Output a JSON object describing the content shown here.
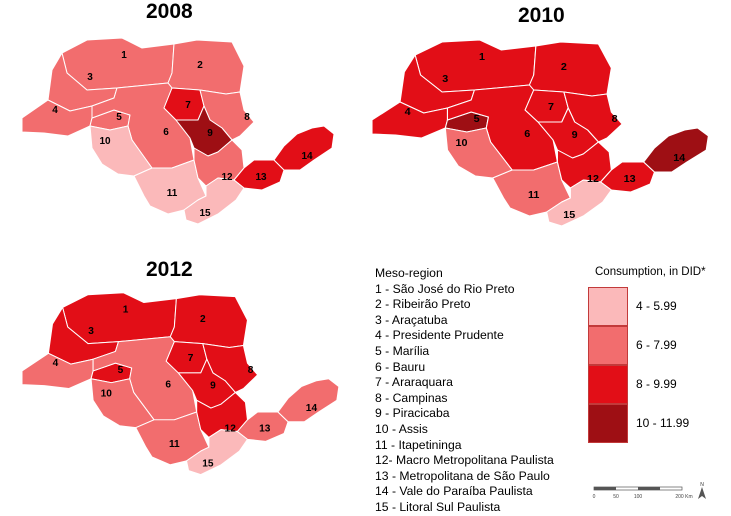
{
  "maps": [
    {
      "year": "2008"
    },
    {
      "year": "2010"
    },
    {
      "year": "2012"
    }
  ],
  "meso_legend": {
    "title": "Meso-region",
    "items": [
      "1 - São José do Rio Preto",
      "2 - Ribeirão Preto",
      "3 - Araçatuba",
      "4 - Presidente Prudente",
      "5 - Marília",
      "6 - Bauru",
      "7 - Araraquara",
      "8 - Campinas",
      "9 - Piracicaba",
      "10 - Assis",
      "11 - Itapetininga",
      "12- Macro Metropolitana Paulista",
      "13 - Metropolitana de São Paulo",
      "14 - Vale do Paraíba Paulista",
      "15 - Litoral Sul Paulista"
    ]
  },
  "consumption_legend": {
    "title": "Consumption, in DID*",
    "classes": [
      {
        "label": "4 - 5.99",
        "color": "#fbb9ba"
      },
      {
        "label": "6 - 7.99",
        "color": "#f26d6e"
      },
      {
        "label": "8 - 9.99",
        "color": "#e20e17"
      },
      {
        "label": "10 - 11.99",
        "color": "#9e0f14"
      }
    ]
  },
  "region_classes": {
    "2008": [
      1,
      1,
      1,
      1,
      1,
      1,
      2,
      1,
      3,
      0,
      0,
      1,
      2,
      2,
      0
    ],
    "2010": [
      2,
      2,
      2,
      2,
      3,
      2,
      2,
      2,
      2,
      1,
      1,
      2,
      2,
      3,
      0
    ],
    "2012": [
      2,
      2,
      2,
      1,
      2,
      1,
      2,
      2,
      2,
      1,
      1,
      2,
      1,
      1,
      0
    ]
  },
  "scale_bar": {
    "ticks": [
      "0",
      "50",
      "100",
      "200 Km"
    ]
  },
  "north_arrow": {
    "label": "N"
  }
}
